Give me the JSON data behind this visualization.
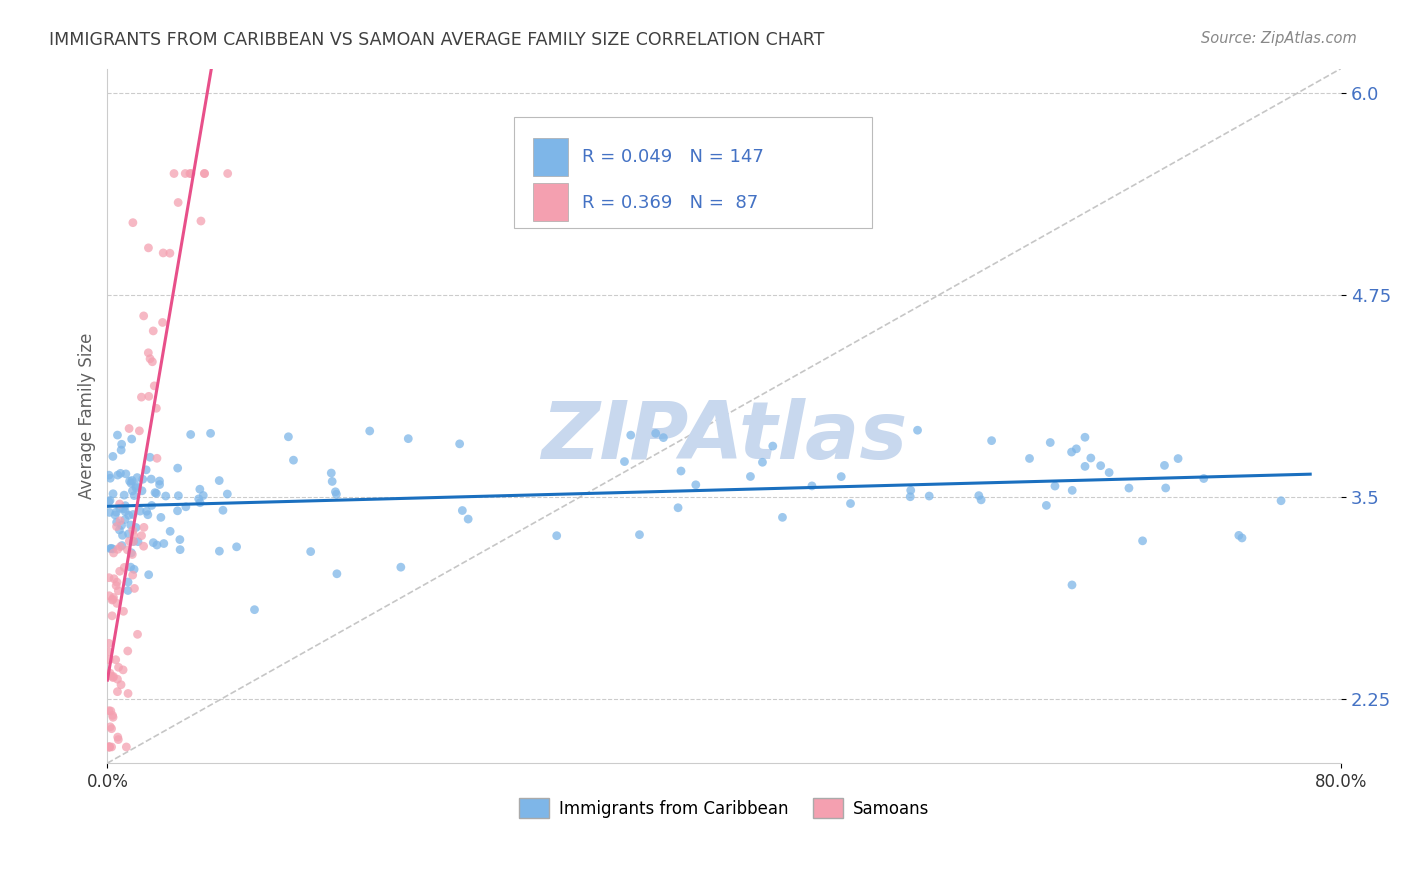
{
  "title": "IMMIGRANTS FROM CARIBBEAN VS SAMOAN AVERAGE FAMILY SIZE CORRELATION CHART",
  "source": "Source: ZipAtlas.com",
  "ylabel": "Average Family Size",
  "xlim": [
    0.0,
    0.8
  ],
  "ylim": [
    1.85,
    6.15
  ],
  "yticks": [
    2.25,
    3.5,
    4.75,
    6.0
  ],
  "xticks": [
    0.0,
    0.8
  ],
  "xticklabels": [
    "0.0%",
    "80.0%"
  ],
  "R_caribbean": 0.049,
  "N_caribbean": 147,
  "R_samoan": 0.369,
  "N_samoan": 87,
  "color_caribbean": "#7EB6E8",
  "color_samoan": "#F4A0B0",
  "line_color_caribbean": "#1A6FBF",
  "line_color_samoan": "#E8508A",
  "diagonal_color": "#C0C0C0",
  "background_color": "#FFFFFF",
  "grid_color": "#CCCCCC",
  "tick_color": "#4472C4",
  "title_color": "#404040",
  "watermark_text": "ZIPAtlas",
  "watermark_color": "#C8D8EE",
  "legend_label1": "Immigrants from Caribbean",
  "legend_label2": "Samoans"
}
